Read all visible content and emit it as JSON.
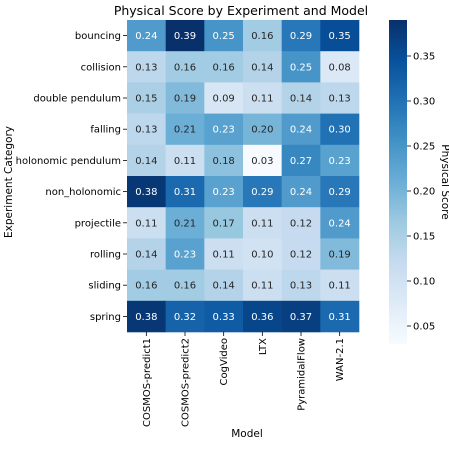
{
  "chart_data": {
    "type": "heatmap",
    "title": "Physical Score by Experiment and Model",
    "xlabel": "Model",
    "ylabel": "Experiment Category",
    "colorbar_label": "Physical Score",
    "colormap": "Blues",
    "color_range": [
      0.03,
      0.39
    ],
    "colorbar_ticks": [
      "0.05",
      "0.10",
      "0.15",
      "0.20",
      "0.25",
      "0.30",
      "0.35"
    ],
    "columns": [
      "COSMOS-predict1",
      "COSMOS-predict2",
      "CogVideo",
      "LTX",
      "PyramidalFlow",
      "WAN-2.1"
    ],
    "rows": [
      "bouncing",
      "collision",
      "double pendulum",
      "falling",
      "holonomic pendulum",
      "non_holonomic",
      "projectile",
      "rolling",
      "sliding",
      "spring"
    ],
    "values": [
      [
        "0.24",
        "0.39",
        "0.25",
        "0.16",
        "0.29",
        "0.35"
      ],
      [
        "0.13",
        "0.16",
        "0.16",
        "0.14",
        "0.25",
        "0.08"
      ],
      [
        "0.15",
        "0.19",
        "0.09",
        "0.11",
        "0.14",
        "0.13"
      ],
      [
        "0.13",
        "0.21",
        "0.23",
        "0.20",
        "0.24",
        "0.30"
      ],
      [
        "0.14",
        "0.11",
        "0.18",
        "0.03",
        "0.27",
        "0.23"
      ],
      [
        "0.38",
        "0.31",
        "0.23",
        "0.29",
        "0.24",
        "0.29"
      ],
      [
        "0.11",
        "0.21",
        "0.17",
        "0.11",
        "0.12",
        "0.24"
      ],
      [
        "0.14",
        "0.23",
        "0.11",
        "0.10",
        "0.12",
        "0.19"
      ],
      [
        "0.16",
        "0.16",
        "0.14",
        "0.11",
        "0.13",
        "0.11"
      ],
      [
        "0.38",
        "0.32",
        "0.33",
        "0.36",
        "0.37",
        "0.31"
      ]
    ]
  }
}
